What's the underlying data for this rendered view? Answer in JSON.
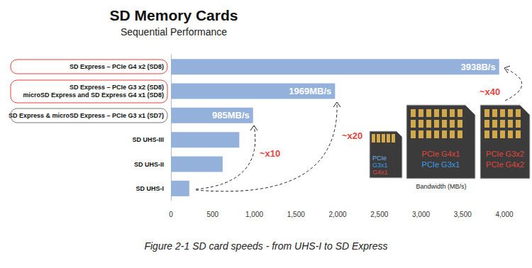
{
  "chart_data": {
    "type": "bar",
    "orientation": "horizontal",
    "title": "SD Memory Cards",
    "subtitle": "Sequential Performance",
    "caption": "Figure 2-1 SD card speeds - from UHS-I to SD Express",
    "x_label": "Bandwidth (MB/s)",
    "categories": [
      "SD Express – PCIe G4 x2 (SD8)",
      "SD Express – PCIe G3 x2 (SD8)\nmicroSD Express and SD Express G4 x1 (SD8)",
      "SD Express & microSD Express – PCIe G3 x1 (SD7)",
      "SD UHS-III",
      "SD UHS-II",
      "SD UHS-I"
    ],
    "values": [
      3938,
      1969,
      985,
      820,
      620,
      220
    ],
    "value_labels": [
      "3938B/s",
      "1969MB/s",
      "985MB/s",
      null,
      null,
      null
    ],
    "data_labels": true,
    "color": "#94b1dc",
    "xlim": [
      0,
      4000
    ],
    "xticks": [
      0,
      500,
      1000,
      1500,
      2000,
      2500,
      3000,
      3500,
      4000
    ],
    "grid": false,
    "annotations": [
      "~x10",
      "~x20",
      "~x40"
    ],
    "card_labels": {
      "microsd": [
        "PCIe",
        "G3x1",
        "G4x1"
      ],
      "card_left": [
        "PCIe G4x1",
        "PCIe G3x1"
      ],
      "card_right": [
        "PCIe G3x2",
        "PCIe G4x2"
      ]
    }
  }
}
